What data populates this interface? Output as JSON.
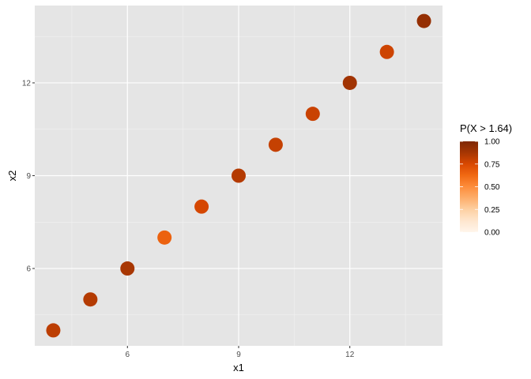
{
  "chart_data": {
    "type": "scatter",
    "title": "",
    "xlabel": "x1",
    "ylabel": "x2",
    "xlim": [
      3.5,
      14.5
    ],
    "ylim": [
      3.5,
      14.5
    ],
    "x_ticks": [
      6,
      9,
      12
    ],
    "y_ticks": [
      6,
      9,
      12
    ],
    "grid": true,
    "points": [
      {
        "x": 4,
        "y": 4,
        "p": 0.82
      },
      {
        "x": 5,
        "y": 5,
        "p": 0.84
      },
      {
        "x": 6,
        "y": 6,
        "p": 0.87
      },
      {
        "x": 7,
        "y": 7,
        "p": 0.65
      },
      {
        "x": 8,
        "y": 8,
        "p": 0.76
      },
      {
        "x": 9,
        "y": 9,
        "p": 0.84
      },
      {
        "x": 10,
        "y": 10,
        "p": 0.8
      },
      {
        "x": 11,
        "y": 11,
        "p": 0.79
      },
      {
        "x": 12,
        "y": 12,
        "p": 0.89
      },
      {
        "x": 13,
        "y": 13,
        "p": 0.78
      },
      {
        "x": 14,
        "y": 14,
        "p": 0.93
      }
    ],
    "legend": {
      "title": "P(X > 1.64)",
      "placement": "right",
      "range": [
        0,
        1
      ],
      "breaks": [
        "0.00",
        "0.25",
        "0.50",
        "0.75",
        "1.00"
      ],
      "palette": [
        "#fff5eb",
        "#fee6ce",
        "#fdd0a2",
        "#fdae6b",
        "#fd8d3c",
        "#f16913",
        "#d94801",
        "#a63603",
        "#7f2704"
      ]
    },
    "colors": {
      "panel": "#e5e5e5",
      "grid": "#ffffff"
    }
  }
}
